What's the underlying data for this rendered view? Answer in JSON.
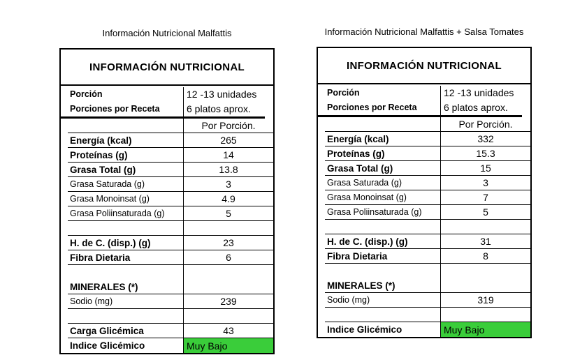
{
  "theme": {
    "highlight_color": "#3ACD3A",
    "border_color": "#000000",
    "background": "#FFFFFF",
    "text_color": "#000000"
  },
  "tables": [
    {
      "title": "Información Nutricional Malfattis",
      "header": "INFORMACIÓN NUTRICIONAL",
      "serving_rows": [
        {
          "label": "Porción",
          "value": "12 -13 unidades"
        },
        {
          "label": "Porciones por Receta",
          "value": "6 platos aprox."
        }
      ],
      "rows": [
        {
          "kind": "colheader",
          "label": "",
          "value": "Por Porción."
        },
        {
          "kind": "data",
          "label": "Energía (kcal)",
          "value": "265",
          "emphasis": "bold"
        },
        {
          "kind": "data",
          "label": "Proteínas (g)",
          "value": "14",
          "emphasis": "bold"
        },
        {
          "kind": "data",
          "label": "Grasa Total (g)",
          "value": "13.8",
          "emphasis": "bold"
        },
        {
          "kind": "data",
          "label": "Grasa Saturada (g)",
          "value": "3",
          "emphasis": "sub"
        },
        {
          "kind": "data",
          "label": "Grasa Monoinsat (g)",
          "value": "4.9",
          "emphasis": "sub"
        },
        {
          "kind": "data",
          "label": "Grasa Poliinsaturada (g)",
          "value": "5",
          "emphasis": "sub"
        },
        {
          "kind": "spacer",
          "label": "",
          "value": ""
        },
        {
          "kind": "data",
          "label": "H. de C. (disp.) (g)",
          "value": "23",
          "emphasis": "bold"
        },
        {
          "kind": "data",
          "label": "Fibra Dietaria",
          "value": "6",
          "emphasis": "bold"
        },
        {
          "kind": "tall",
          "label": "MINERALES (*)",
          "value": "",
          "emphasis": "bold"
        },
        {
          "kind": "data",
          "label": "Sodio (mg)",
          "value": "239",
          "emphasis": "sub"
        },
        {
          "kind": "spacer",
          "label": "",
          "value": ""
        },
        {
          "kind": "data",
          "label": "Carga Glicémica",
          "value": "43",
          "emphasis": "bold"
        },
        {
          "kind": "data",
          "label": "Indice Glicémico",
          "value": "Muy Bajo",
          "emphasis": "bold",
          "highlight": true
        }
      ]
    },
    {
      "title": "Información Nutricional Malfattis + Salsa Tomates",
      "header": "INFORMACIÓN NUTRICIONAL",
      "serving_rows": [
        {
          "label": "Porción",
          "value": "12 -13 unidades"
        },
        {
          "label": "Porciones por Receta",
          "value": "6 platos aprox."
        }
      ],
      "rows": [
        {
          "kind": "colheader",
          "label": "",
          "value": "Por Porción."
        },
        {
          "kind": "data",
          "label": "Energía (kcal)",
          "value": "332",
          "emphasis": "bold"
        },
        {
          "kind": "data",
          "label": "Proteínas (g)",
          "value": "15.3",
          "emphasis": "bold"
        },
        {
          "kind": "data",
          "label": "Grasa Total (g)",
          "value": "15",
          "emphasis": "bold"
        },
        {
          "kind": "data",
          "label": "Grasa Saturada (g)",
          "value": "3",
          "emphasis": "sub"
        },
        {
          "kind": "data",
          "label": "Grasa Monoinsat (g)",
          "value": "7",
          "emphasis": "sub"
        },
        {
          "kind": "data",
          "label": "Grasa Poliinsaturada (g)",
          "value": "5",
          "emphasis": "sub"
        },
        {
          "kind": "spacer",
          "label": "",
          "value": ""
        },
        {
          "kind": "data",
          "label": "H. de C. (disp.) (g)",
          "value": "31",
          "emphasis": "bold"
        },
        {
          "kind": "data",
          "label": "Fibra Dietaria",
          "value": "8",
          "emphasis": "bold"
        },
        {
          "kind": "tall",
          "label": "MINERALES (*)",
          "value": "",
          "emphasis": "bold"
        },
        {
          "kind": "data",
          "label": "Sodio (mg)",
          "value": "319",
          "emphasis": "sub"
        },
        {
          "kind": "spacer",
          "label": "",
          "value": ""
        },
        {
          "kind": "data",
          "label": "Indice Glicémico",
          "value": "Muy Bajo",
          "emphasis": "bold",
          "highlight": true
        }
      ]
    }
  ]
}
